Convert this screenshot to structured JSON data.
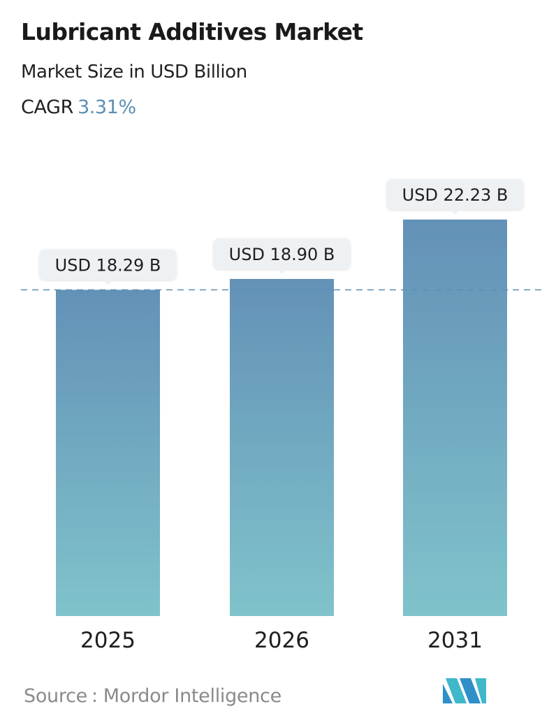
{
  "header": {
    "title": "Lubricant Additives Market",
    "subtitle": "Market Size in USD Billion",
    "cagr_label": "CAGR",
    "cagr_value": "3.31%"
  },
  "chart_data": {
    "type": "bar",
    "title": "Lubricant Additives Market",
    "subtitle": "Market Size in USD Billion",
    "categories": [
      "2025",
      "2026",
      "2031"
    ],
    "values": [
      18.29,
      18.9,
      22.23
    ],
    "value_labels": [
      "USD 18.29 B",
      "USD 18.90 B",
      "USD 22.23 B"
    ],
    "unit": "USD Billion",
    "reference_line": {
      "value": 18.29,
      "style": "dashed"
    },
    "grid": false,
    "legend": "none",
    "colors": {
      "bar_top": "#6391b7",
      "bar_bottom": "#80c3cb",
      "label_bg": "#eef1f3",
      "reference_line": "#5b8fb4"
    }
  },
  "footer": {
    "source_label": "Source",
    "source_sep": ":",
    "source_name": "Mordor Intelligence",
    "logo_icon": "mordor-intelligence-logo-icon"
  }
}
